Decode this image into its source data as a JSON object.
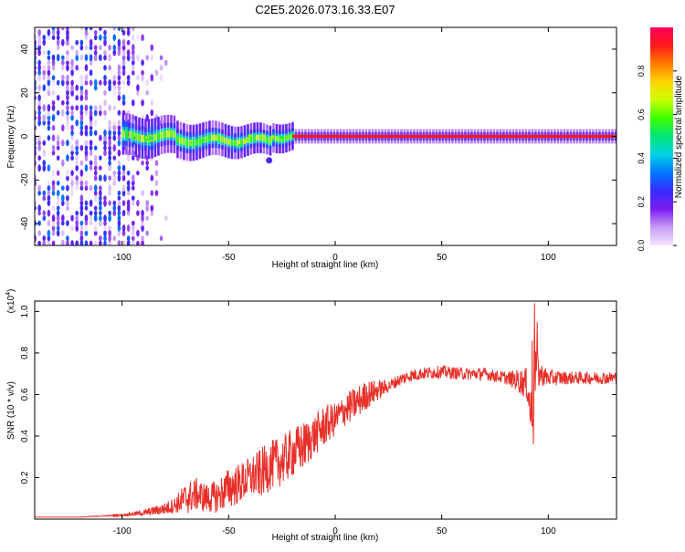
{
  "title": "C2E5.2026.073.16.33.E07",
  "chart_data": [
    {
      "type": "heatmap",
      "xlabel": "Height of straight line (km)",
      "ylabel": "Frequency (Hz)",
      "xlim": [
        -141,
        132
      ],
      "ylim": [
        -50,
        50
      ],
      "xticks": [
        -100,
        -50,
        0,
        50,
        100
      ],
      "xtick_labels": [
        "-100",
        "-50",
        "0",
        "50",
        "100"
      ],
      "yticks": [
        -40,
        -20,
        0,
        20,
        40
      ],
      "ytick_labels": [
        "-40",
        "-20",
        "0",
        "20",
        "40"
      ],
      "colorbar": {
        "label": "Normalized spectral amplitude",
        "range": [
          0,
          1
        ],
        "ticks": [
          0.0,
          0.2,
          0.4,
          0.6,
          0.8
        ],
        "tick_labels": [
          "0.0",
          "0.2",
          "0.4",
          "0.6",
          "0.8"
        ],
        "colors": [
          "#f2e6ff",
          "#c89cf5",
          "#7a1cf0",
          "#3a2cff",
          "#0077ff",
          "#00d2e6",
          "#00e676",
          "#3cff00",
          "#c8ff00",
          "#ffd400",
          "#ff7a00",
          "#ff1a1a",
          "#ff005e"
        ]
      },
      "features": [
        {
          "name": "noise field",
          "x_range": [
            -141,
            -78
          ],
          "freq_range": [
            -50,
            50
          ],
          "amplitude": 0.1
        },
        {
          "name": "spectral line",
          "x_range": [
            -100,
            132
          ],
          "freq": 0,
          "amplitude": 0.95
        }
      ]
    },
    {
      "type": "line",
      "xlabel": "Height of straight line (km)",
      "ylabel": "SNR (10 * v/v)",
      "yscale_label": "(x10",
      "yscale_exponent": "4",
      "xlim": [
        -141,
        132
      ],
      "ylim": [
        0,
        1.05
      ],
      "xticks": [
        -100,
        -50,
        0,
        50,
        100
      ],
      "xtick_labels": [
        "-100",
        "-50",
        "0",
        "50",
        "100"
      ],
      "yticks": [
        0.2,
        0.4,
        0.6,
        0.8,
        1.0
      ],
      "ytick_labels": [
        "0.2",
        "0.4",
        "0.6",
        "0.8",
        "1.0"
      ],
      "series": [
        {
          "name": "SNR",
          "color": "#e8302a",
          "x": [
            -141,
            -120,
            -100,
            -90,
            -80,
            -75,
            -70,
            -65,
            -60,
            -55,
            -50,
            -45,
            -40,
            -35,
            -30,
            -25,
            -20,
            -15,
            -10,
            -5,
            0,
            5,
            10,
            15,
            20,
            25,
            30,
            35,
            40,
            50,
            60,
            70,
            80,
            85,
            90,
            92,
            94,
            96,
            100,
            110,
            120,
            132
          ],
          "y": [
            0.01,
            0.01,
            0.02,
            0.03,
            0.05,
            0.07,
            0.1,
            0.12,
            0.1,
            0.11,
            0.15,
            0.17,
            0.2,
            0.22,
            0.26,
            0.28,
            0.32,
            0.35,
            0.4,
            0.45,
            0.48,
            0.53,
            0.56,
            0.6,
            0.62,
            0.64,
            0.67,
            0.69,
            0.7,
            0.71,
            0.7,
            0.7,
            0.68,
            0.67,
            0.65,
            0.5,
            0.72,
            0.7,
            0.68,
            0.68,
            0.68,
            0.68
          ],
          "noise_amplitude": [
            0.0,
            0.0,
            0.005,
            0.015,
            0.03,
            0.04,
            0.08,
            0.08,
            0.07,
            0.08,
            0.1,
            0.1,
            0.1,
            0.12,
            0.12,
            0.12,
            0.12,
            0.12,
            0.1,
            0.1,
            0.08,
            0.08,
            0.08,
            0.07,
            0.05,
            0.03,
            0.03,
            0.03,
            0.03,
            0.03,
            0.03,
            0.03,
            0.03,
            0.05,
            0.08,
            0.15,
            0.15,
            0.06,
            0.04,
            0.03,
            0.03,
            0.03
          ],
          "spikes": [
            [
              93.5,
              1.04
            ],
            [
              93.0,
              0.36
            ],
            [
              94.8,
              0.95
            ],
            [
              92.5,
              0.86
            ]
          ]
        }
      ]
    }
  ]
}
